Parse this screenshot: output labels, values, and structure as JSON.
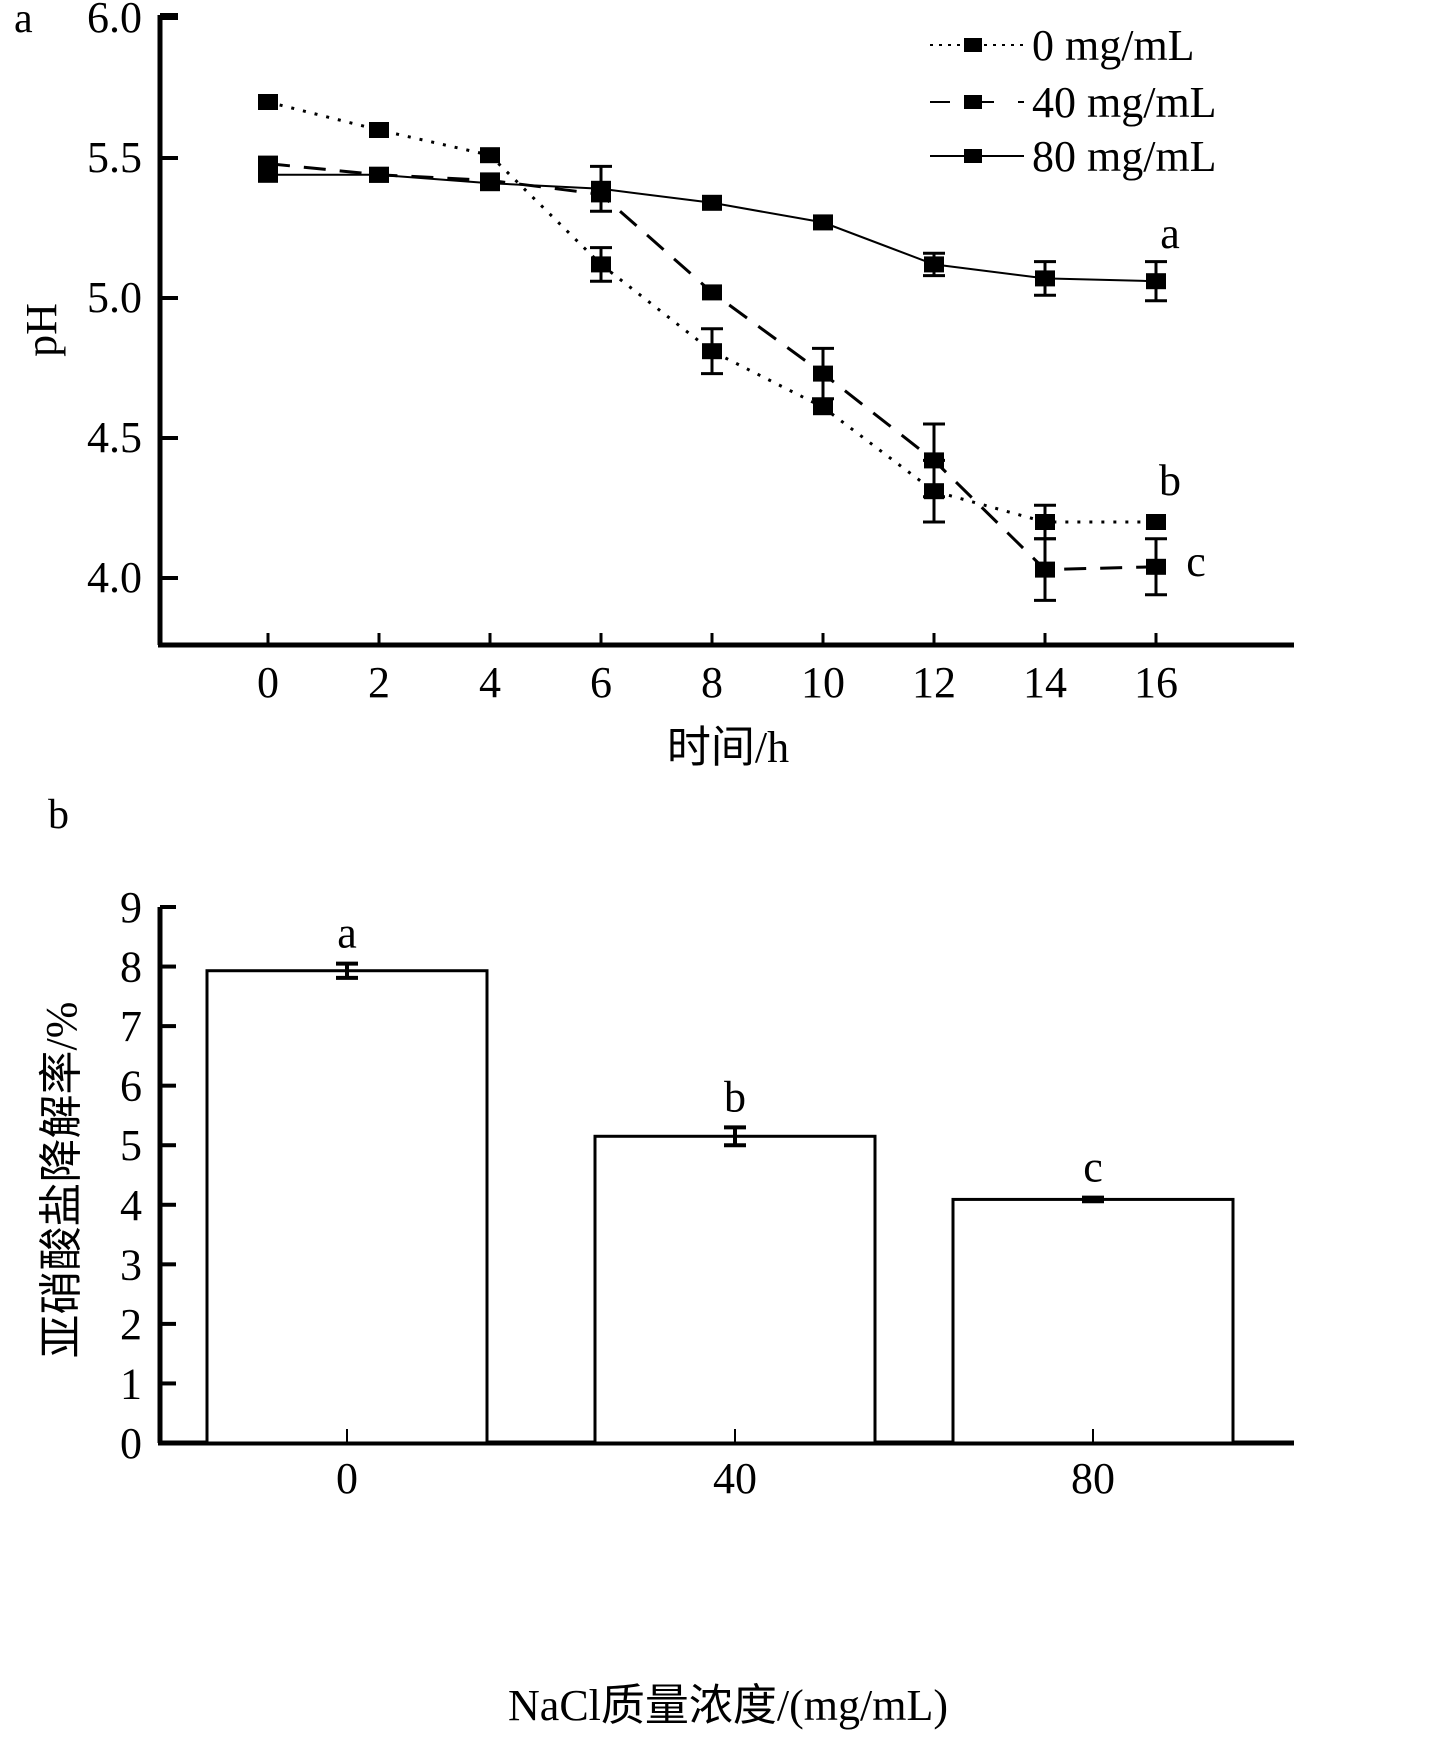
{
  "chart_data": [
    {
      "panel": "a",
      "type": "line",
      "title": "",
      "xlabel": "时间/h",
      "ylabel": "pH",
      "xlim": [
        -2,
        19.3
      ],
      "ylim": [
        3.75,
        6.0
      ],
      "x_ticks": [
        "0",
        "2",
        "4",
        "6",
        "8",
        "10",
        "12",
        "14",
        "16"
      ],
      "y_ticks": [
        "4.0",
        "4.5",
        "5.0",
        "5.5",
        "6.0"
      ],
      "grid": false,
      "legend_position": "top-right",
      "x": [
        0,
        2,
        4,
        6,
        8,
        10,
        12,
        14,
        16
      ],
      "series": [
        {
          "name": "0 mg/mL",
          "line_style": "dotted",
          "values": [
            5.7,
            5.6,
            5.51,
            5.12,
            4.81,
            4.61,
            4.31,
            4.2,
            4.2
          ],
          "errors": [
            0.0,
            0.0,
            0.0,
            0.06,
            0.08,
            0.0,
            0.11,
            0.06,
            0.0
          ]
        },
        {
          "name": "40 mg/mL",
          "line_style": "dashed",
          "values": [
            5.48,
            5.44,
            5.42,
            5.37,
            5.02,
            4.73,
            4.42,
            4.03,
            4.04
          ],
          "errors": [
            0.0,
            0.0,
            0.0,
            0.0,
            0.0,
            0.09,
            0.13,
            0.11,
            0.1
          ]
        },
        {
          "name": "80 mg/mL",
          "line_style": "solid",
          "values": [
            5.44,
            5.44,
            5.41,
            5.39,
            5.34,
            5.27,
            5.12,
            5.07,
            5.06
          ],
          "errors": [
            0.0,
            0.0,
            0.0,
            0.08,
            0.0,
            0.0,
            0.04,
            0.06,
            0.07
          ]
        }
      ],
      "annotations": [
        {
          "text": "a",
          "series": "80 mg/mL",
          "x": 16
        },
        {
          "text": "b",
          "series": "0 mg/mL",
          "x": 16
        },
        {
          "text": "c",
          "series": "40 mg/mL",
          "x": 16
        }
      ]
    },
    {
      "panel": "b",
      "type": "bar",
      "title": "",
      "xlabel": "NaCl质量浓度/(mg/mL)",
      "ylabel": "亚硝酸盐降解率/%",
      "categories": [
        "0",
        "40",
        "80"
      ],
      "values": [
        7.93,
        5.15,
        4.09
      ],
      "errors": [
        0.12,
        0.15,
        0.03
      ],
      "significance": [
        "a",
        "b",
        "c"
      ],
      "ylim": [
        0,
        9
      ],
      "y_ticks": [
        "0",
        "1",
        "2",
        "3",
        "4",
        "5",
        "6",
        "7",
        "8",
        "9"
      ],
      "grid": false
    }
  ],
  "colors": {
    "ink": "#000000",
    "background": "#ffffff",
    "bar_fill": "#ffffff"
  }
}
